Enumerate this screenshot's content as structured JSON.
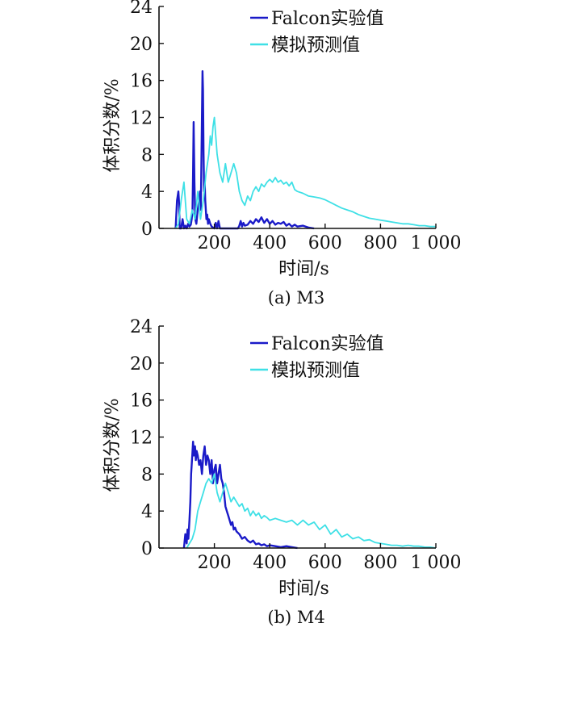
{
  "colors": {
    "experiment": "#1a1ac8",
    "simulation": "#3fe0e6",
    "axis": "#111111"
  },
  "chart_data": [
    {
      "type": "line",
      "caption": "(a) M3",
      "xlabel": "时间/s",
      "ylabel": "体积分数/%",
      "xlim": [
        0,
        1000
      ],
      "ylim": [
        0,
        24
      ],
      "xticks": [
        200,
        400,
        600,
        800,
        1000
      ],
      "xtick_labels": [
        "200",
        "400",
        "600",
        "800",
        "1 000"
      ],
      "yticks": [
        0,
        4,
        8,
        12,
        16,
        20,
        24
      ],
      "ytick_labels": [
        "0",
        "4",
        "8",
        "12",
        "16",
        "20",
        "24"
      ],
      "legend_position": "top",
      "series": [
        {
          "name": "Falcon实验值",
          "color": "#1a1ac8",
          "x": [
            60,
            65,
            70,
            72,
            75,
            80,
            85,
            90,
            95,
            100,
            105,
            110,
            115,
            118,
            121,
            123,
            125,
            128,
            131,
            135,
            140,
            145,
            148,
            151,
            153,
            155,
            157,
            159,
            161,
            163,
            165,
            167,
            169,
            171,
            174,
            177,
            180,
            185,
            190,
            200,
            205,
            210,
            215,
            220,
            230,
            250,
            270,
            285,
            290,
            295,
            300,
            305,
            310,
            320,
            330,
            340,
            350,
            360,
            370,
            380,
            390,
            400,
            410,
            420,
            430,
            440,
            450,
            460,
            470,
            480,
            490,
            500,
            520,
            540,
            560
          ],
          "y": [
            0,
            3,
            4,
            3,
            0,
            0,
            1,
            0,
            0.3,
            0,
            0.5,
            0.2,
            0.4,
            1,
            2,
            6,
            11.5,
            5,
            1,
            0.5,
            2,
            3,
            4,
            2,
            7,
            12,
            17,
            15,
            8,
            4,
            5,
            3,
            2,
            1,
            1.5,
            0.5,
            1,
            0.5,
            0.2,
            0,
            0.6,
            0,
            0.8,
            0,
            0,
            0,
            0,
            0,
            0.3,
            0.8,
            0.2,
            0.6,
            0.3,
            0.4,
            0.8,
            0.5,
            1,
            0.7,
            1.2,
            0.6,
            1,
            0.5,
            0.8,
            0.4,
            0.6,
            0.5,
            0.7,
            0.3,
            0.5,
            0.2,
            0.4,
            0.2,
            0.3,
            0.1,
            0
          ]
        },
        {
          "name": "模拟预测值",
          "color": "#3fe0e6",
          "x": [
            60,
            70,
            80,
            90,
            100,
            110,
            120,
            130,
            140,
            150,
            160,
            170,
            180,
            185,
            190,
            195,
            200,
            205,
            210,
            220,
            230,
            240,
            250,
            260,
            270,
            280,
            290,
            300,
            310,
            320,
            330,
            340,
            350,
            360,
            370,
            380,
            390,
            400,
            410,
            420,
            430,
            440,
            450,
            460,
            470,
            480,
            490,
            500,
            520,
            540,
            560,
            580,
            600,
            620,
            640,
            660,
            680,
            700,
            720,
            740,
            760,
            780,
            800,
            820,
            840,
            860,
            880,
            900,
            920,
            940,
            960,
            980,
            1000
          ],
          "y": [
            0,
            0.5,
            3,
            5,
            1,
            0.5,
            2,
            1,
            4,
            1,
            3,
            6,
            8,
            10,
            9,
            11,
            12,
            10,
            8,
            6,
            5,
            7,
            5,
            6,
            7,
            6,
            4,
            3,
            2.5,
            3.5,
            3,
            4,
            4.5,
            4,
            4.8,
            4.5,
            5,
            5.3,
            5,
            5.5,
            5,
            5.2,
            4.8,
            5,
            4.6,
            5,
            4.2,
            4,
            3.8,
            3.5,
            3.4,
            3.3,
            3.1,
            2.8,
            2.5,
            2.2,
            2,
            1.8,
            1.5,
            1.3,
            1.1,
            1,
            0.9,
            0.8,
            0.7,
            0.6,
            0.5,
            0.5,
            0.4,
            0.3,
            0.3,
            0.2,
            0.2
          ]
        }
      ]
    },
    {
      "type": "line",
      "caption": "(b) M4",
      "xlabel": "时间/s",
      "ylabel": "体积分数/%",
      "xlim": [
        0,
        1000
      ],
      "ylim": [
        0,
        24
      ],
      "xticks": [
        200,
        400,
        600,
        800,
        1000
      ],
      "xtick_labels": [
        "200",
        "400",
        "600",
        "800",
        "1 000"
      ],
      "yticks": [
        0,
        4,
        8,
        12,
        16,
        20,
        24
      ],
      "ytick_labels": [
        "0",
        "4",
        "8",
        "12",
        "16",
        "20",
        "24"
      ],
      "legend_position": "top",
      "series": [
        {
          "name": "Falcon实验值",
          "color": "#1a1ac8",
          "x": [
            90,
            95,
            100,
            103,
            106,
            110,
            113,
            116,
            120,
            123,
            126,
            130,
            133,
            136,
            140,
            145,
            150,
            155,
            160,
            165,
            170,
            175,
            180,
            185,
            190,
            195,
            200,
            205,
            210,
            215,
            220,
            225,
            230,
            235,
            240,
            245,
            250,
            255,
            260,
            265,
            270,
            275,
            280,
            290,
            300,
            310,
            320,
            330,
            340,
            350,
            360,
            370,
            380,
            390,
            400,
            420,
            440,
            460,
            480,
            500
          ],
          "y": [
            0,
            1.5,
            0.5,
            2,
            1,
            3,
            5,
            8,
            10,
            11.5,
            10,
            11,
            9.5,
            10.5,
            10,
            9,
            9.5,
            8,
            10,
            11,
            9,
            10,
            9.5,
            8,
            9.5,
            7,
            8.5,
            9,
            7,
            8,
            9,
            7.5,
            7,
            6,
            4.5,
            4,
            3.5,
            3,
            2.5,
            2.8,
            2,
            2.2,
            1.8,
            1.5,
            1,
            1.2,
            0.8,
            0.6,
            0.8,
            0.4,
            0.5,
            0.3,
            0.4,
            0.2,
            0.3,
            0.2,
            0.1,
            0.2,
            0.1,
            0
          ]
        },
        {
          "name": "模拟预测值",
          "color": "#3fe0e6",
          "x": [
            100,
            110,
            120,
            130,
            140,
            150,
            160,
            170,
            180,
            190,
            200,
            210,
            220,
            230,
            240,
            250,
            260,
            270,
            280,
            290,
            300,
            310,
            320,
            330,
            340,
            350,
            360,
            370,
            380,
            390,
            400,
            420,
            440,
            460,
            480,
            500,
            520,
            540,
            560,
            580,
            600,
            620,
            640,
            660,
            680,
            700,
            720,
            740,
            760,
            780,
            800,
            820,
            840,
            860,
            880,
            900,
            920,
            940,
            960,
            980,
            1000
          ],
          "y": [
            0,
            0.5,
            1,
            2,
            4,
            5,
            6,
            7,
            7.5,
            7,
            8,
            6,
            5,
            6,
            7,
            6,
            5,
            5.5,
            5,
            4.5,
            4.8,
            4,
            4.3,
            3.5,
            4,
            3.5,
            3.8,
            3.2,
            3.5,
            3.3,
            3,
            3.2,
            3,
            2.8,
            3,
            2.5,
            3,
            2.5,
            2.8,
            2,
            2.5,
            1.5,
            2,
            1.2,
            1.5,
            1,
            1.2,
            0.8,
            0.9,
            0.6,
            0.5,
            0.4,
            0.3,
            0.3,
            0.2,
            0.3,
            0.2,
            0.2,
            0.1,
            0.1,
            0
          ]
        }
      ]
    }
  ]
}
